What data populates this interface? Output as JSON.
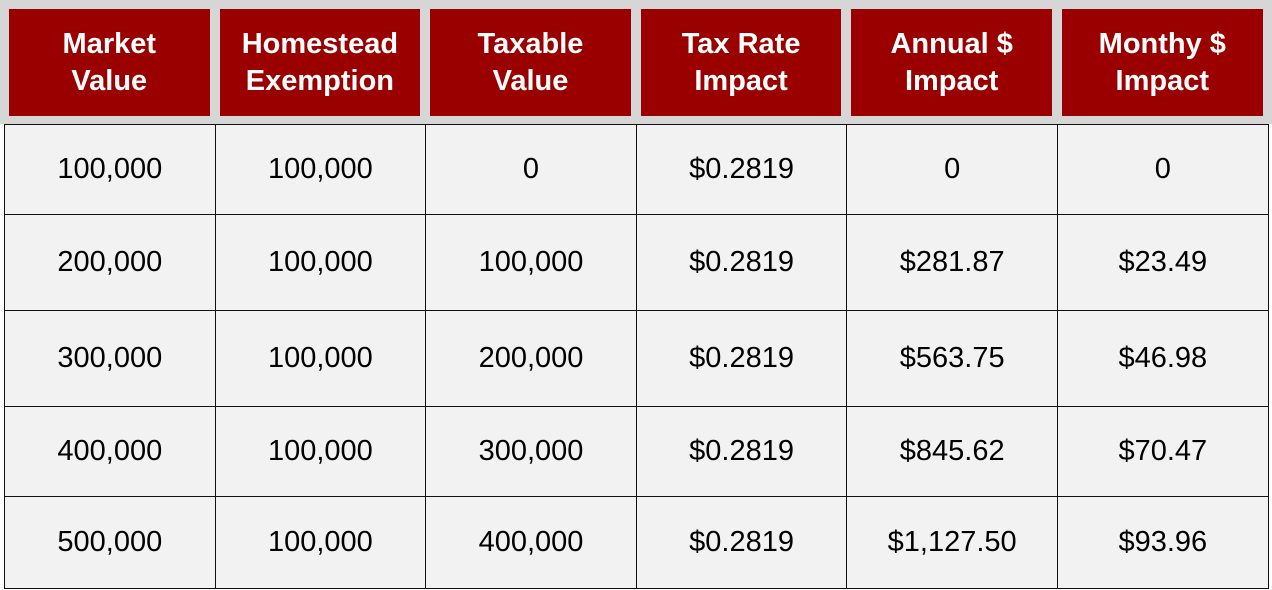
{
  "table": {
    "header": [
      [
        "Market",
        "Value"
      ],
      [
        "Homestead",
        "Exemption"
      ],
      [
        "Taxable",
        "Value"
      ],
      [
        "Tax Rate",
        "Impact"
      ],
      [
        "Annual $",
        "Impact"
      ],
      [
        "Monthy $",
        "Impact"
      ]
    ],
    "rows": [
      [
        "100,000",
        "100,000",
        "0",
        "$0.2819",
        "0",
        "0"
      ],
      [
        "200,000",
        "100,000",
        "100,000",
        "$0.2819",
        "$281.87",
        "$23.49"
      ],
      [
        "300,000",
        "100,000",
        "200,000",
        "$0.2819",
        "$563.75",
        "$46.98"
      ],
      [
        "400,000",
        "100,000",
        "300,000",
        "$0.2819",
        "$845.62",
        "$70.47"
      ],
      [
        "500,000",
        "100,000",
        "400,000",
        "$0.2819",
        "$1,127.50",
        "$93.96"
      ]
    ]
  }
}
